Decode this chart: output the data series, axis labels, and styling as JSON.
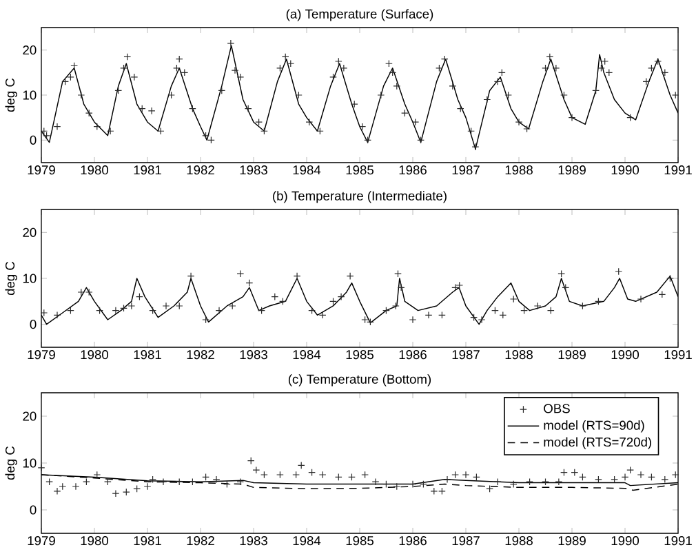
{
  "chart_data": [
    {
      "type": "line",
      "title": "(a) Temperature (Surface)",
      "ylabel": "deg C",
      "xlim": [
        "1979",
        "1991"
      ],
      "ylim": [
        -5,
        25
      ],
      "xticks": [
        "1979",
        "1980",
        "1981",
        "1982",
        "1983",
        "1984",
        "1985",
        "1986",
        "1987",
        "1988",
        "1989",
        "1990",
        "1991"
      ],
      "yticks": [
        0,
        10,
        20
      ],
      "series": [
        {
          "type": "scatter",
          "marker": "cross",
          "color": "#2a2a2a",
          "x": [
            "1979-01-19",
            "1979-02-06",
            "1979-04-20",
            "1979-06-14",
            "1979-07-21",
            "1979-08-15",
            "1979-10-02",
            "1979-11-25",
            "1980-01-19",
            "1980-04-20",
            "1980-06-14",
            "1980-07-21",
            "1980-08-15",
            "1980-10-02",
            "1980-11-25",
            "1981-01-30",
            "1981-04-02",
            "1981-06-14",
            "1981-07-21",
            "1981-08-08",
            "1981-09-13",
            "1981-11-07",
            "1982-02-06",
            "1982-03-15",
            "1982-05-27",
            "1982-07-28",
            "1982-08-26",
            "1982-10-02",
            "1982-11-25",
            "1983-02-06",
            "1983-03-15",
            "1983-07-02",
            "1983-08-08",
            "1983-09-13",
            "1983-11-07",
            "1984-01-19",
            "1984-04-02",
            "1984-07-02",
            "1984-08-08",
            "1984-09-13",
            "1984-11-25",
            "1985-01-19",
            "1985-02-25",
            "1985-05-27",
            "1985-07-21",
            "1985-08-15",
            "1985-09-13",
            "1985-11-07",
            "1986-01-19",
            "1986-02-25",
            "1986-07-02",
            "1986-08-08",
            "1986-10-02",
            "1986-11-25",
            "1987-02-06",
            "1987-03-08",
            "1987-05-27",
            "1987-08-08",
            "1987-09-06",
            "1987-10-20",
            "1988-01-01",
            "1988-02-25",
            "1988-07-02",
            "1988-08-01",
            "1988-09-13",
            "1988-11-07",
            "1989-01-01",
            "1989-06-14",
            "1989-07-21",
            "1989-08-15",
            "1989-09-13",
            "1990-02-06",
            "1990-05-27",
            "1990-07-02",
            "1990-08-15",
            "1990-10-02",
            "1990-12-14"
          ],
          "values": [
            2,
            1,
            3,
            13,
            14,
            16.5,
            10,
            6,
            3,
            2,
            11,
            16,
            18.5,
            14,
            7,
            6.5,
            2,
            10,
            16,
            18,
            15,
            7,
            1,
            0,
            11,
            21.5,
            15.5,
            14,
            7,
            4,
            2,
            16,
            18.5,
            17,
            10,
            4,
            2,
            14,
            17.5,
            16,
            8,
            3,
            0,
            10,
            17,
            15,
            12,
            6,
            4,
            0,
            16,
            18,
            12,
            7,
            2,
            -1.5,
            9,
            13,
            15,
            10,
            4,
            2.5,
            16,
            18.5,
            16,
            10,
            5,
            11,
            16,
            17.5,
            15,
            5,
            13,
            16,
            17.5,
            15,
            10
          ]
        },
        {
          "line_style": "solid",
          "color": "#000000",
          "x": [
            "1979-01-01",
            "1979-02-25",
            "1979-05-27",
            "1979-08-15",
            "1979-10-20",
            "1980-01-01",
            "1980-04-02",
            "1980-06-14",
            "1980-08-08",
            "1980-10-20",
            "1981-01-01",
            "1981-03-15",
            "1981-06-14",
            "1981-08-08",
            "1981-11-07",
            "1982-01-01",
            "1982-02-14",
            "1982-05-27",
            "1982-08-01",
            "1982-10-20",
            "1983-01-01",
            "1983-03-15",
            "1983-06-14",
            "1983-08-15",
            "1983-11-07",
            "1984-01-01",
            "1984-03-15",
            "1984-06-14",
            "1984-08-15",
            "1984-11-07",
            "1985-01-01",
            "1985-02-25",
            "1985-06-14",
            "1985-08-15",
            "1985-11-07",
            "1986-01-01",
            "1986-02-25",
            "1986-06-14",
            "1986-08-15",
            "1986-11-07",
            "1987-01-01",
            "1987-03-08",
            "1987-06-14",
            "1987-08-26",
            "1987-11-07",
            "1988-01-01",
            "1988-03-08",
            "1988-06-14",
            "1988-08-08",
            "1988-11-07",
            "1989-01-01",
            "1989-04-02",
            "1989-06-14",
            "1989-07-10",
            "1989-08-08",
            "1989-10-20",
            "1990-01-01",
            "1990-03-15",
            "1990-06-14",
            "1990-08-15",
            "1990-11-07",
            "1991-01-01"
          ],
          "values": [
            2,
            -0.5,
            13,
            16,
            8,
            4,
            1,
            12,
            17,
            8,
            4,
            2,
            12,
            16,
            7,
            3,
            0,
            12,
            21,
            9,
            4,
            2,
            13,
            18,
            8,
            5,
            2,
            12,
            17,
            8,
            3,
            -0.5,
            12,
            16,
            8,
            4,
            -0.5,
            13,
            18,
            9,
            5,
            -2,
            11,
            14,
            7,
            4,
            2.5,
            13,
            18,
            9,
            5,
            3.5,
            11,
            19,
            15,
            9,
            6,
            4.5,
            13,
            18,
            10,
            6
          ]
        }
      ]
    },
    {
      "type": "line",
      "title": "(b) Temperature (Intermediate)",
      "ylabel": "deg C",
      "xlim": [
        "1979",
        "1991"
      ],
      "ylim": [
        -5,
        25
      ],
      "xticks": [
        "1979",
        "1980",
        "1981",
        "1982",
        "1983",
        "1984",
        "1985",
        "1986",
        "1987",
        "1988",
        "1989",
        "1990",
        "1991"
      ],
      "yticks": [
        0,
        10,
        20
      ],
      "series": [
        {
          "type": "scatter",
          "marker": "cross",
          "color": "#2a2a2a",
          "x": [
            "1979-01-19",
            "1979-04-20",
            "1979-07-21",
            "1979-10-02",
            "1979-11-25",
            "1980-02-06",
            "1980-05-27",
            "1980-07-21",
            "1980-09-13",
            "1980-11-07",
            "1981-02-06",
            "1981-05-09",
            "1981-08-08",
            "1981-10-27",
            "1982-02-06",
            "1982-05-09",
            "1982-08-08",
            "1982-10-02",
            "1982-12-03",
            "1983-02-25",
            "1983-05-27",
            "1983-07-21",
            "1983-10-27",
            "1984-02-06",
            "1984-04-20",
            "1984-07-02",
            "1984-08-26",
            "1984-10-27",
            "1985-02-06",
            "1985-03-15",
            "1985-07-02",
            "1985-09-06",
            "1985-09-21",
            "1985-10-13",
            "1986-01-01",
            "1986-04-20",
            "1986-07-21",
            "1986-10-20",
            "1986-11-18",
            "1987-02-25",
            "1987-04-20",
            "1987-07-21",
            "1987-09-13",
            "1987-11-25",
            "1988-02-06",
            "1988-05-09",
            "1988-08-08",
            "1988-10-20",
            "1988-11-18",
            "1989-03-15",
            "1989-07-02",
            "1989-11-18",
            "1990-04-20",
            "1990-09-13",
            "1990-11-07"
          ],
          "values": [
            2.5,
            2,
            3,
            7,
            7,
            3,
            3,
            3.5,
            4,
            6,
            3,
            4,
            4,
            10.5,
            1,
            3,
            4,
            11,
            9,
            3,
            6,
            5,
            10.5,
            3,
            2,
            5,
            6,
            10.5,
            1,
            0.5,
            3,
            4,
            11,
            8,
            1,
            2,
            2,
            8,
            8.5,
            1.5,
            1,
            3,
            2,
            5.5,
            3,
            4,
            3,
            11,
            8,
            4,
            5,
            11.5,
            5.5,
            6.5,
            10
          ]
        },
        {
          "line_style": "solid",
          "color": "#000000",
          "x": [
            "1979-01-01",
            "1979-02-06",
            "1979-05-27",
            "1979-09-13",
            "1979-11-07",
            "1980-01-01",
            "1980-04-02",
            "1980-07-02",
            "1980-09-13",
            "1980-10-20",
            "1980-12-14",
            "1981-03-15",
            "1981-07-02",
            "1981-10-02",
            "1981-10-27",
            "1982-01-01",
            "1982-02-25",
            "1982-07-02",
            "1982-10-20",
            "1982-12-03",
            "1983-02-06",
            "1983-04-20",
            "1983-08-08",
            "1983-10-27",
            "1984-01-01",
            "1984-03-15",
            "1984-07-02",
            "1984-10-02",
            "1984-11-07",
            "1985-01-01",
            "1985-03-15",
            "1985-07-02",
            "1985-09-13",
            "1985-10-02",
            "1985-11-07",
            "1986-02-06",
            "1986-06-14",
            "1986-10-02",
            "1986-11-15",
            "1987-01-01",
            "1987-04-02",
            "1987-05-27",
            "1987-08-08",
            "1987-11-07",
            "1988-01-01",
            "1988-03-15",
            "1988-07-02",
            "1988-09-13",
            "1988-10-20",
            "1988-12-14",
            "1989-03-15",
            "1989-08-08",
            "1989-10-20",
            "1989-11-25",
            "1990-01-19",
            "1990-03-15",
            "1990-08-08",
            "1990-11-07",
            "1991-01-01"
          ],
          "values": [
            2,
            0,
            2.5,
            5,
            8,
            5,
            1,
            3,
            5,
            10,
            6,
            1.5,
            4,
            7,
            10,
            4,
            0.5,
            4,
            6,
            8,
            3,
            4,
            5,
            10,
            5,
            2,
            4,
            7,
            9,
            5,
            0.3,
            3,
            4,
            10,
            5,
            3,
            4,
            7,
            8,
            4,
            0,
            3,
            6,
            9,
            5,
            3,
            4,
            6,
            10,
            5,
            4,
            5,
            8,
            10,
            5.5,
            5,
            7,
            10.5,
            6
          ]
        }
      ]
    },
    {
      "type": "line",
      "title": "(c) Temperature (Bottom)",
      "ylabel": "deg C",
      "xlim": [
        "1979",
        "1991"
      ],
      "ylim": [
        -5,
        25
      ],
      "xticks": [
        "1979",
        "1980",
        "1981",
        "1982",
        "1983",
        "1984",
        "1985",
        "1986",
        "1987",
        "1988",
        "1989",
        "1990",
        "1991"
      ],
      "yticks": [
        0,
        10,
        20
      ],
      "legend": "top right",
      "series": [
        {
          "type": "scatter",
          "name": "OBS",
          "marker": "cross",
          "color": "#2a2a2a",
          "x": [
            "1979-01-01",
            "1979-02-25",
            "1979-04-20",
            "1979-05-27",
            "1979-08-26",
            "1979-11-07",
            "1980-01-19",
            "1980-04-02",
            "1980-05-27",
            "1980-08-08",
            "1980-10-20",
            "1981-01-01",
            "1981-02-06",
            "1981-04-20",
            "1981-08-08",
            "1981-11-07",
            "1982-02-06",
            "1982-04-20",
            "1982-07-02",
            "1982-10-02",
            "1982-12-14",
            "1983-01-19",
            "1983-03-15",
            "1983-07-02",
            "1983-10-20",
            "1983-11-25",
            "1984-02-06",
            "1984-04-20",
            "1984-08-08",
            "1984-11-07",
            "1985-02-06",
            "1985-04-20",
            "1985-07-02",
            "1985-09-13",
            "1986-01-01",
            "1986-03-15",
            "1986-05-27",
            "1986-07-21",
            "1986-08-26",
            "1986-10-20",
            "1987-01-01",
            "1987-03-15",
            "1987-06-14",
            "1987-08-08",
            "1987-11-25",
            "1988-03-15",
            "1988-07-02",
            "1988-10-02",
            "1988-11-07",
            "1989-01-19",
            "1989-03-15",
            "1989-07-02",
            "1989-10-20",
            "1990-01-01",
            "1990-02-06",
            "1990-04-20",
            "1990-07-02",
            "1990-10-02",
            "1990-12-14"
          ],
          "values": [
            9,
            6,
            4,
            5,
            5,
            6,
            7.5,
            6,
            3.5,
            3.8,
            4.5,
            5,
            6.5,
            6,
            6,
            6,
            7,
            6.5,
            5.5,
            6,
            10.5,
            8.5,
            7.5,
            7.5,
            7.5,
            9.5,
            8,
            7.5,
            7,
            7,
            7.5,
            6,
            5.5,
            5,
            5.5,
            5.5,
            4,
            4,
            6.5,
            7.5,
            7.5,
            7,
            4.5,
            6,
            5.5,
            6,
            6,
            6,
            8,
            8,
            7,
            6.5,
            6.5,
            7,
            8.5,
            7.5,
            7,
            6.5,
            7.5
          ]
        },
        {
          "name": "model (RTS=90d)",
          "line_style": "solid",
          "color": "#000000",
          "x": [
            "1979-01-01",
            "1980-01-01",
            "1981-01-01",
            "1982-01-01",
            "1982-10-20",
            "1983-01-01",
            "1984-01-01",
            "1985-01-01",
            "1986-01-01",
            "1986-08-08",
            "1987-01-01",
            "1988-01-01",
            "1989-01-01",
            "1990-01-01",
            "1990-02-06",
            "1991-01-01"
          ],
          "values": [
            7.5,
            7,
            6.2,
            6,
            6.3,
            5.8,
            5.5,
            5.5,
            5.5,
            6.5,
            6.3,
            5.8,
            5.8,
            5.8,
            5.2,
            5.8
          ]
        },
        {
          "name": "model (RTS=720d)",
          "line_style": "dashed",
          "color": "#000000",
          "x": [
            "1979-01-01",
            "1980-01-01",
            "1981-01-01",
            "1982-01-01",
            "1982-10-20",
            "1983-01-01",
            "1984-01-01",
            "1985-01-01",
            "1986-01-01",
            "1986-08-08",
            "1987-01-01",
            "1988-01-01",
            "1989-01-01",
            "1990-01-01",
            "1990-02-25",
            "1991-01-01"
          ],
          "values": [
            7.5,
            6.8,
            6,
            5.8,
            5.5,
            4.8,
            4.5,
            4.6,
            5,
            5.5,
            5.2,
            4.8,
            4.8,
            4.6,
            4.2,
            5.5
          ]
        }
      ]
    }
  ]
}
